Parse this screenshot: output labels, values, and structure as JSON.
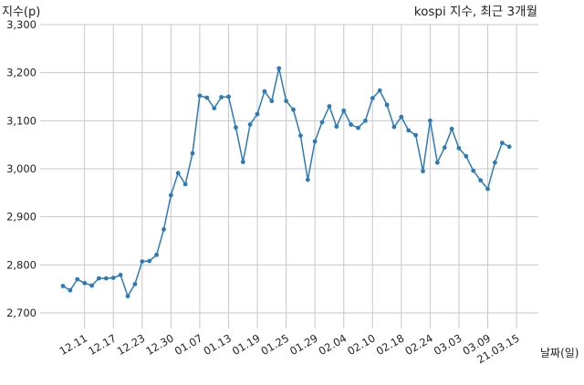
{
  "chart_data": {
    "type": "line",
    "title": "kospi 지수, 최근 3개월",
    "ylabel": "지수(p)",
    "xlabel": "날짜(일)",
    "ylim": [
      2700,
      3300
    ],
    "yticks": [
      2700,
      2800,
      2900,
      3000,
      3100,
      3200,
      3300
    ],
    "ytick_labels": [
      "2,700",
      "2,800",
      "2,900",
      "3,000",
      "3,100",
      "3,200",
      "3,300"
    ],
    "xtick_labels": [
      "12.11",
      "12.17",
      "12.23",
      "12.30",
      "01.07",
      "01.13",
      "01.19",
      "01.25",
      "01.29",
      "02.04",
      "02.10",
      "02.18",
      "02.24",
      "03.03",
      "03.09",
      "21.03.15"
    ],
    "xtick_indices": [
      3,
      7,
      11,
      15,
      19,
      23,
      27,
      31,
      35,
      39,
      43,
      47,
      51,
      55,
      59,
      63
    ],
    "grid": true,
    "color": "#2b7bb9",
    "series": [
      {
        "values": [
          2756,
          2747,
          2770,
          2762,
          2757,
          2772,
          2772,
          2773,
          2779,
          2735,
          2760,
          2807,
          2808,
          2821,
          2874,
          2945,
          2991,
          2968,
          3032,
          3152,
          3148,
          3126,
          3149,
          3150,
          3086,
          3014,
          3092,
          3114,
          3161,
          3141,
          3209,
          3141,
          3123,
          3069,
          2977,
          3057,
          3097,
          3130,
          3088,
          3121,
          3092,
          3085,
          3100,
          3147,
          3163,
          3133,
          3087,
          3108,
          3080,
          3070,
          2995,
          3100,
          3013,
          3044,
          3083,
          3043,
          3026,
          2996,
          2976,
          2958,
          3013,
          3054,
          3046
        ]
      }
    ]
  }
}
